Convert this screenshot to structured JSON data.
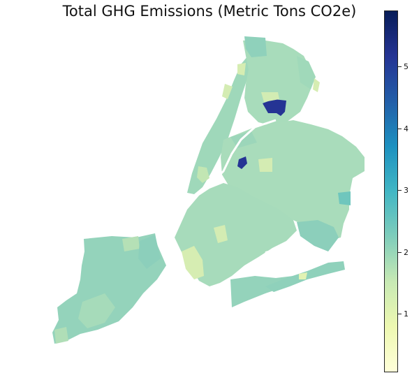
{
  "title": "Total GHG Emissions (Metric Tons CO2e)",
  "colorbar": {
    "colormap": "YlGnBu",
    "range": [
      0,
      5.9
    ],
    "ticks": [
      "1",
      "2",
      "3",
      "4",
      "5"
    ]
  },
  "colors": {
    "high": "#253494",
    "low": "#edf8b1",
    "typical": "#a8dcbb",
    "mid": "#8fd1bb"
  }
}
